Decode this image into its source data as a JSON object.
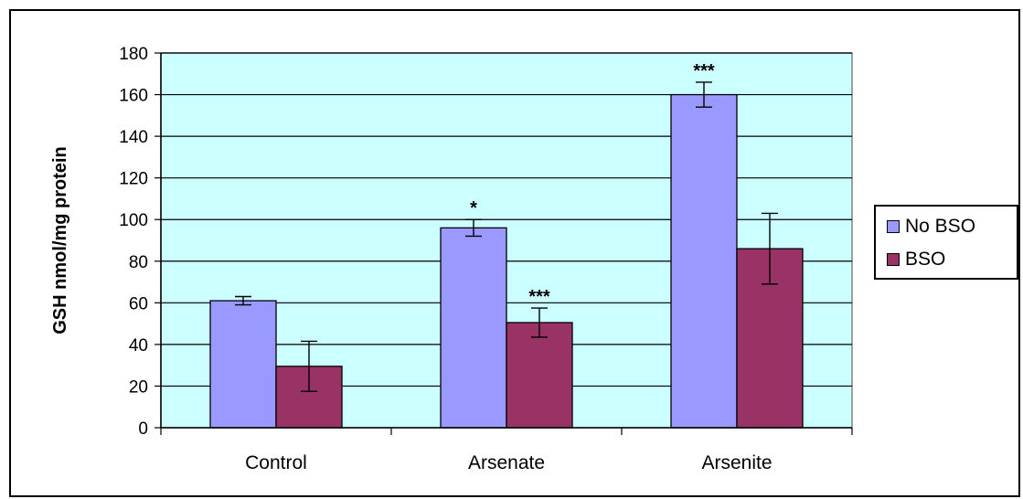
{
  "chart_data": {
    "type": "bar",
    "title": "",
    "xlabel": "",
    "ylabel": "GSH nmol/mg protein",
    "ylim": [
      0,
      180
    ],
    "yticks": [
      0,
      20,
      40,
      60,
      80,
      100,
      120,
      140,
      160,
      180
    ],
    "categories": [
      "Control",
      "Arsenate",
      "Arsenite"
    ],
    "series": [
      {
        "name": "No BSO",
        "color": "#9999ff",
        "values": [
          61,
          96,
          160
        ],
        "errors": [
          2,
          4,
          6
        ],
        "significance": [
          "",
          "*",
          "***"
        ]
      },
      {
        "name": "BSO",
        "color": "#993366",
        "values": [
          29.5,
          50.5,
          86
        ],
        "errors": [
          12,
          7,
          17
        ],
        "significance": [
          "",
          "***",
          ""
        ]
      }
    ],
    "plot_background": "#ccffff",
    "grid": true,
    "legend_position": "right"
  }
}
